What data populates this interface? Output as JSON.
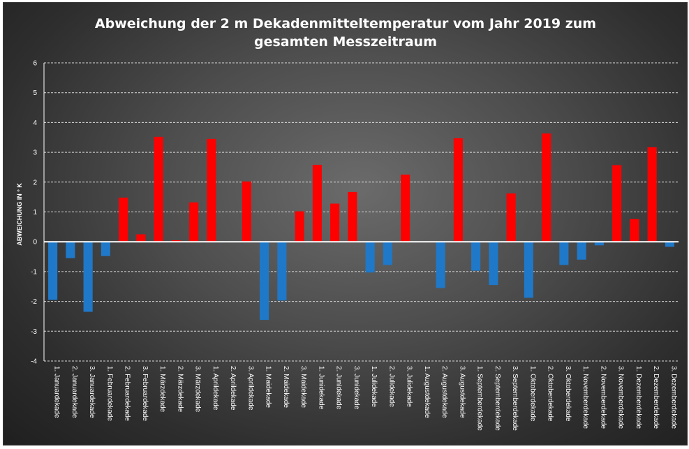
{
  "chart_data": {
    "type": "bar",
    "title": [
      "Abweichung der 2 m Dekadenmitteltemperatur  vom Jahr 2019 zum",
      "gesamten Messzeitraum"
    ],
    "ylabel": "ABWEICHUNG IN ° K",
    "xlabel": "",
    "ylim": [
      -4,
      6
    ],
    "yticks": [
      "6",
      "5",
      "4",
      "3",
      "2",
      "1",
      "0",
      "-1",
      "-2",
      "-3",
      "-4"
    ],
    "grid": true,
    "colors": {
      "positive": "#ff0000",
      "negative": "#1f78c8"
    },
    "categories": [
      "1. Januardekade",
      "2. Januardekade",
      "3. Januardekade",
      "1. Februardekade",
      "2. Februardekade",
      "3. Februardekade",
      "1. Märzdekade",
      "2. Märzdekade",
      "3. Märzdekade",
      "1. Aprildekade",
      "2. Aprildekade",
      "3. Aprildekade",
      "1. Maidekade",
      "2. Maidekade",
      "3. Maidekade",
      "1. Junidekade",
      "2. Junidekade",
      "3. Junidekade",
      "1. Julidekade",
      "2. Julidekade",
      "3. Julidekade",
      "1. Augustdekade",
      "2. Augustdekade",
      "3. Augustdekade",
      "1. Septemberdekade",
      "2. Septemberdekade",
      "3. Septemberdekade",
      "1. Oktoberdekade",
      "2. Oktoberdekade",
      "3. Oktoberdekade",
      "1. Novemberdekade",
      "2. Novemberdekade",
      "3. Novemberdekade",
      "1. Dezemberdekade",
      "2. Dezemberdekade",
      "3. Dezemberdekade"
    ],
    "values": [
      -1.95,
      -0.55,
      -2.35,
      -0.48,
      1.48,
      0.25,
      3.52,
      0.05,
      1.32,
      3.45,
      0.0,
      2.02,
      -2.62,
      -1.97,
      1.02,
      2.58,
      1.28,
      1.67,
      -1.03,
      -0.78,
      2.25,
      0.0,
      -1.55,
      3.47,
      -0.97,
      -1.45,
      1.62,
      -1.88,
      3.63,
      -0.78,
      -0.6,
      -0.12,
      2.57,
      0.76,
      3.17,
      -0.17
    ]
  }
}
